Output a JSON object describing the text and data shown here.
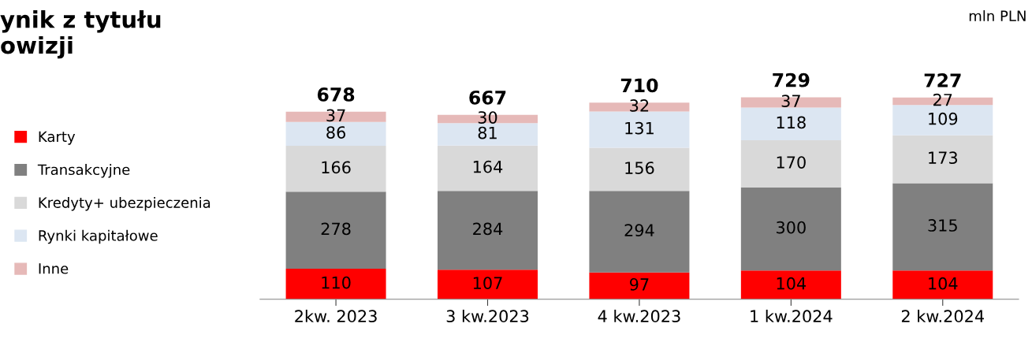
{
  "chart_data": {
    "type": "bar",
    "stacked": true,
    "title": "ynik z tytułu\nowizji",
    "annotations": [
      "mln PLN"
    ],
    "categories": [
      "2kw. 2023",
      "3 kw.2023",
      "4 kw.2023",
      "1 kw.2024",
      "2 kw.2024"
    ],
    "series": [
      {
        "name": "Karty",
        "color": "#ff0000",
        "values": [
          110,
          107,
          97,
          104,
          104
        ]
      },
      {
        "name": "Transakcyjne",
        "color": "#808080",
        "values": [
          278,
          284,
          294,
          300,
          315
        ]
      },
      {
        "name": "Kredyty+ ubezpieczenia",
        "color": "#d9d9d9",
        "values": [
          166,
          164,
          156,
          170,
          173
        ]
      },
      {
        "name": "Rynki kapitałowe",
        "color": "#dce6f2",
        "values": [
          86,
          81,
          131,
          118,
          109
        ]
      },
      {
        "name": "Inne",
        "color": "#e6b9b8",
        "values": [
          37,
          30,
          32,
          37,
          27
        ]
      }
    ],
    "totals": [
      "678",
      "667",
      "710",
      "729",
      "727"
    ],
    "data_labels": true,
    "legend": "left",
    "grid": false
  }
}
